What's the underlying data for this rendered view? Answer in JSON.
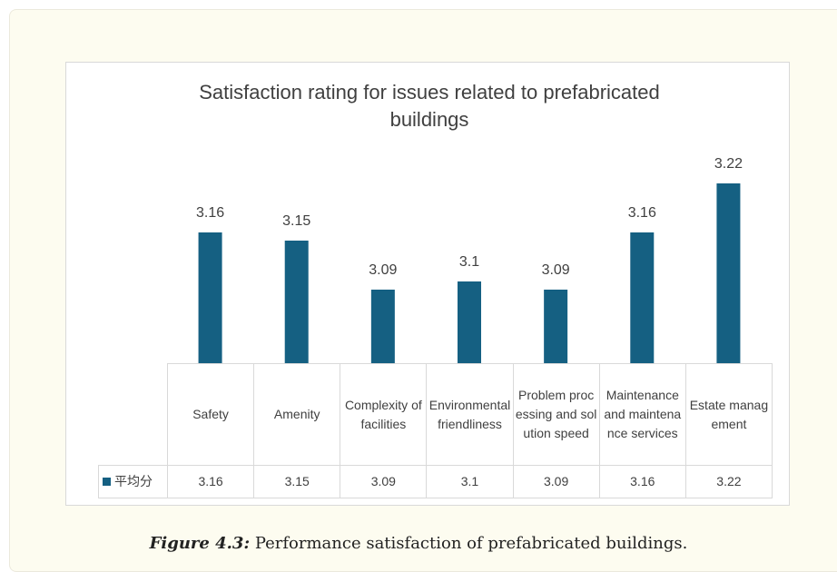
{
  "chart_data": {
    "type": "bar",
    "title": "Satisfaction rating for issues related to prefabricated buildings",
    "categories": [
      "Safety",
      "Amenity",
      "Complexity of facilities",
      "Environmental friendliness",
      "Problem processing and solution speed",
      "Maintenance and maintenance services",
      "Estate management"
    ],
    "series": [
      {
        "name": "平均分",
        "color": "#156082",
        "values": [
          3.16,
          3.15,
          3.09,
          3.1,
          3.09,
          3.16,
          3.22
        ]
      }
    ],
    "ylim": [
      3,
      3.25
    ],
    "data_table": true
  },
  "caption": {
    "label": "Figure 4.3:",
    "text": "Performance satisfaction of prefabricated buildings."
  }
}
